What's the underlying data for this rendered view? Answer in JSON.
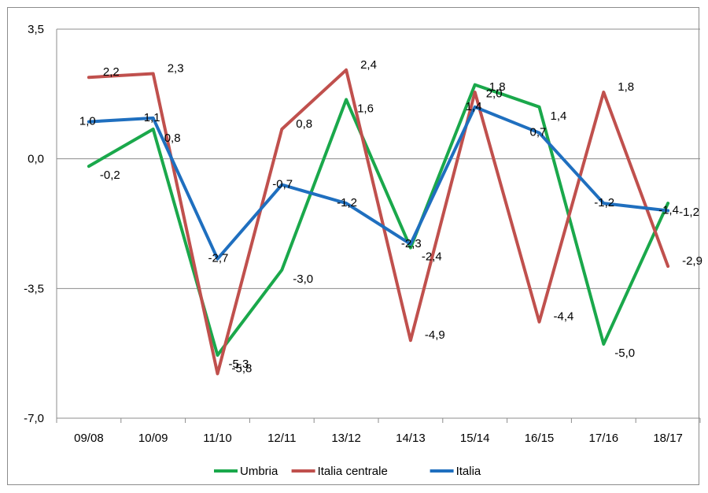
{
  "chart_data": {
    "type": "line",
    "categories": [
      "09/08",
      "10/09",
      "11/10",
      "12/11",
      "13/12",
      "14/13",
      "15/14",
      "16/15",
      "17/16",
      "18/17"
    ],
    "ylim": [
      -7.0,
      3.5
    ],
    "yticks": [
      "3,5",
      "0,0",
      "-3,5",
      "-7,0"
    ],
    "ytick_values": [
      3.5,
      0.0,
      -3.5,
      -7.0
    ],
    "grid": "horizontal",
    "legend_position": "bottom",
    "series": [
      {
        "name": "Umbria",
        "color": "#1aa84b",
        "values": [
          -0.2,
          0.8,
          -5.3,
          -3.0,
          1.6,
          -2.4,
          2.0,
          1.4,
          -5.0,
          -1.2
        ],
        "labels": [
          "-0,2",
          "0,8",
          "-5,3",
          "-3,0",
          "1,6",
          "-2,4",
          "2,0",
          "1,4",
          "-5,0",
          "-1,2"
        ]
      },
      {
        "name": "Italia centrale",
        "color": "#c0504d",
        "values": [
          2.2,
          2.3,
          -5.8,
          0.8,
          2.4,
          -4.9,
          1.8,
          -4.4,
          1.8,
          -2.9
        ],
        "labels": [
          "2,2",
          "2,3",
          "-5,8",
          "0,8",
          "2,4",
          "-4,9",
          "1,8",
          "-4,4",
          "1,8",
          "-2,9"
        ]
      },
      {
        "name": "Italia",
        "color": "#1f6fbf",
        "values": [
          1.0,
          1.1,
          -2.7,
          -0.7,
          -1.2,
          -2.3,
          1.4,
          0.7,
          -1.2,
          -1.4
        ],
        "labels": [
          "1,0",
          "1,1",
          "-2,7",
          "-0,7",
          "-1,2",
          "-2,3",
          "1,4",
          "0,7",
          "-1,2",
          "-1,4"
        ]
      }
    ]
  }
}
